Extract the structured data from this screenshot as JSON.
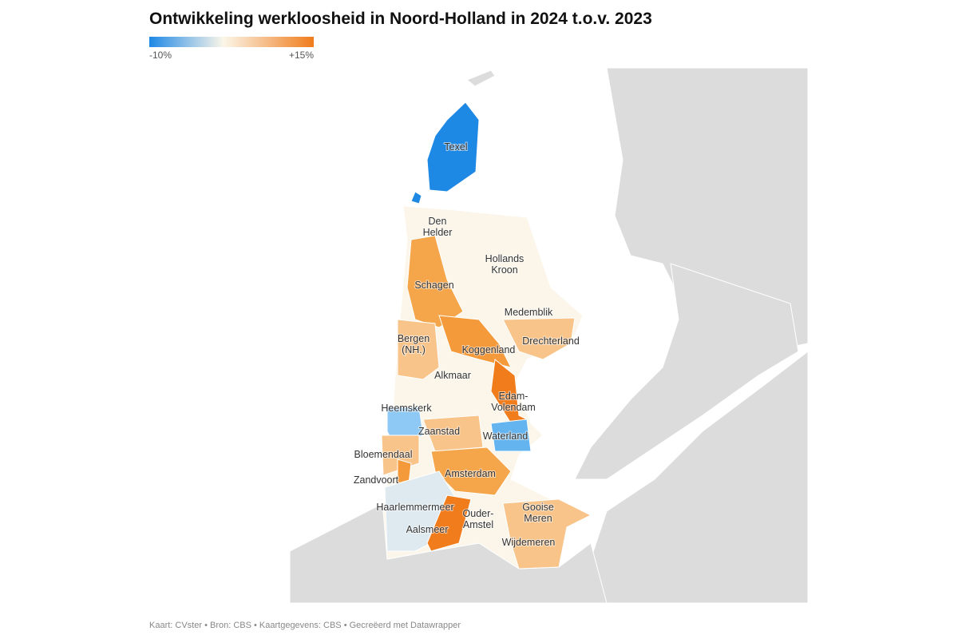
{
  "title": "Ontwikkeling werkloosheid in Noord-Holland in 2024 t.o.v. 2023",
  "legend": {
    "min_label": "-10%",
    "max_label": "+15%",
    "colors": [
      "#1e88e5",
      "#fbf6e9",
      "#f07c1c"
    ]
  },
  "places": [
    "Texel",
    "Den Helder",
    "Hollands Kroon",
    "Schagen",
    "Medemblik",
    "Bergen (NH.)",
    "Drechterland",
    "Koggenland",
    "Alkmaar",
    "Edam-Volendam",
    "Heemskerk",
    "Zaanstad",
    "Waterland",
    "Bloemendaal",
    "Amsterdam",
    "Zandvoort",
    "Haarlemmermeer",
    "Gooise Meren",
    "Ouder-Amstel",
    "Aalsmeer",
    "Wijdemeren"
  ],
  "footer": "Kaart: CVster • Bron: CBS • Kaartgegevens: CBS • Gecreëerd met Datawrapper"
}
